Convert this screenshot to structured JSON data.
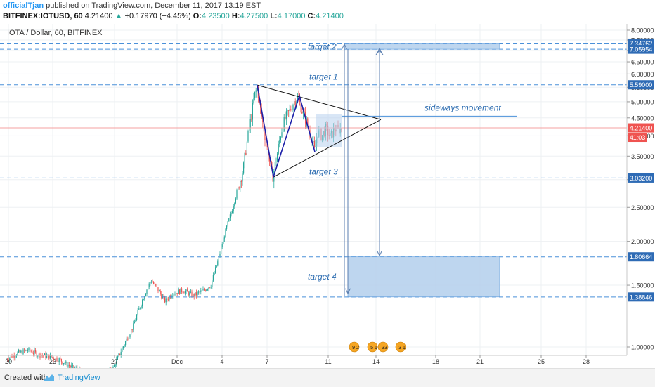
{
  "header": {
    "author": "officialTjan",
    "published": "published on TradingView.com, December 11, 2017 13:19 EST",
    "symbol": "BITFINEX:IOTUSD, 60",
    "price": "4.21400",
    "change": "+0.17970 (+4.45%)",
    "o_label": "O:",
    "o_value": "4.23500",
    "h_label": "H:",
    "h_value": "4.27500",
    "l_label": "L:",
    "l_value": "4.17000",
    "c_label": "C:",
    "c_value": "4.21400"
  },
  "footer": {
    "created_with": "Created with",
    "brand": "TradingView"
  },
  "colors": {
    "up": "#26a69a",
    "down": "#ef5350",
    "level": "#4a90d9",
    "box_fill": "#b8d2ee",
    "pattern": "#1b1fa8",
    "triangle": "#111111",
    "price_line": "#f5a0a0",
    "label_dark": "#1d4e8c",
    "countdown": "#ef5350"
  },
  "chart_data": {
    "type": "candlestick",
    "title": "IOTA / Dollar, 60, BITFINEX",
    "x_ticks": [
      "20",
      "23",
      "27",
      "Dec",
      "4",
      "7",
      "11",
      "14",
      "18",
      "21",
      "25",
      "28"
    ],
    "y_ticks": [
      "1.00000",
      "1.50000",
      "2.00000",
      "2.50000",
      "3.00000",
      "3.50000",
      "4.00000",
      "4.50000",
      "5.00000",
      "5.50000",
      "6.00000",
      "6.50000",
      "7.00000",
      "7.50000",
      "8.00000"
    ],
    "ylim": [
      0.7,
      8.1
    ],
    "grid": true,
    "scale": "logarithmic",
    "last_price": "4.21400",
    "countdown": "41:03",
    "levels": [
      {
        "value": 7.34762,
        "label": "7.34762"
      },
      {
        "value": 7.05954,
        "label": "7.05954"
      },
      {
        "value": 5.59,
        "label": "5.59000"
      },
      {
        "value": 3.032,
        "label": "3.03200"
      },
      {
        "value": 1.80664,
        "label": "1.80664"
      },
      {
        "value": 1.38846,
        "label": "1.38846"
      }
    ],
    "annotations": {
      "target1": "target 1",
      "target2": "target 2",
      "target3": "target 3",
      "target4": "target 4",
      "sideways": "sideways movement"
    },
    "event_badges": [
      "9 2",
      "5 1",
      "33",
      "3 1"
    ]
  }
}
